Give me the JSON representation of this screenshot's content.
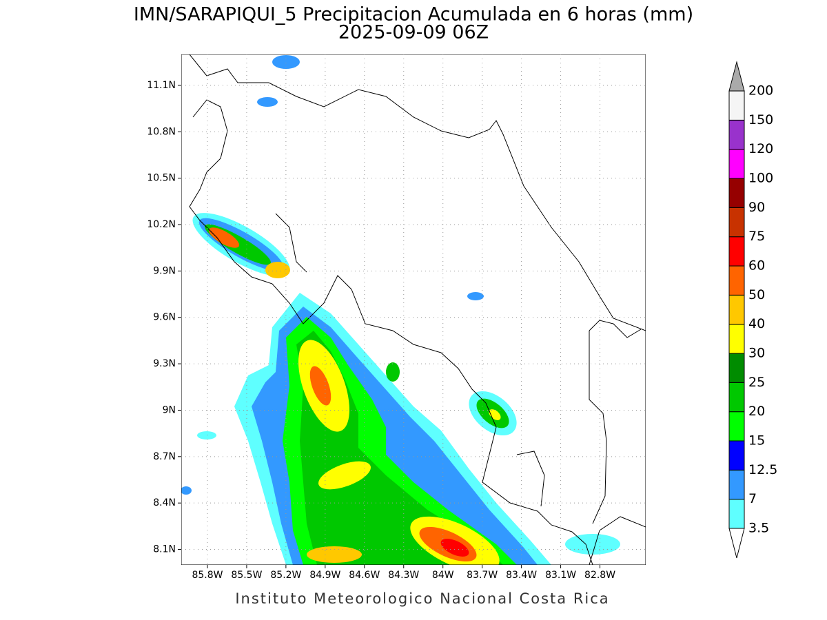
{
  "title": "IMN/SARAPIQUI_5 Precipitacion Acumulada en 6 horas (mm)",
  "subtitle": "2025-09-09 06Z",
  "footer": "Instituto Meteorologico Nacional Costa Rica",
  "map": {
    "xlim": [
      -86.0,
      -82.45
    ],
    "ylim": [
      8.0,
      11.3
    ],
    "grid": true,
    "xticks": [
      {
        "value": -85.8,
        "label": "85.8W"
      },
      {
        "value": -85.5,
        "label": "85.5W"
      },
      {
        "value": -85.2,
        "label": "85.2W"
      },
      {
        "value": -84.9,
        "label": "84.9W"
      },
      {
        "value": -84.6,
        "label": "84.6W"
      },
      {
        "value": -84.3,
        "label": "84.3W"
      },
      {
        "value": -84.0,
        "label": "84W"
      },
      {
        "value": -83.7,
        "label": "83.7W"
      },
      {
        "value": -83.4,
        "label": "83.4W"
      },
      {
        "value": -83.1,
        "label": "83.1W"
      },
      {
        "value": -82.8,
        "label": "82.8W"
      }
    ],
    "yticks": [
      {
        "value": 8.1,
        "label": "8.1N"
      },
      {
        "value": 8.4,
        "label": "8.4N"
      },
      {
        "value": 8.7,
        "label": "8.7N"
      },
      {
        "value": 9.0,
        "label": "9N"
      },
      {
        "value": 9.3,
        "label": "9.3N"
      },
      {
        "value": 9.6,
        "label": "9.6N"
      },
      {
        "value": 9.9,
        "label": "9.9N"
      },
      {
        "value": 10.2,
        "label": "10.2N"
      },
      {
        "value": 10.5,
        "label": "10.5N"
      },
      {
        "value": 10.8,
        "label": "10.8N"
      },
      {
        "value": 11.1,
        "label": "11.1N"
      }
    ]
  },
  "colorbar": {
    "levels": [
      3.5,
      7,
      12.5,
      15,
      20,
      25,
      30,
      40,
      50,
      60,
      75,
      90,
      100,
      120,
      150,
      200
    ],
    "colors": [
      "#ffffff",
      "#5fffff",
      "#3399ff",
      "#0000ff",
      "#00ff00",
      "#00c800",
      "#008c00",
      "#ffff00",
      "#ffc800",
      "#ff6400",
      "#ff0000",
      "#c83200",
      "#960000",
      "#ff00ff",
      "#9932cc",
      "#f5f5f5",
      "#aaaaaa"
    ]
  }
}
